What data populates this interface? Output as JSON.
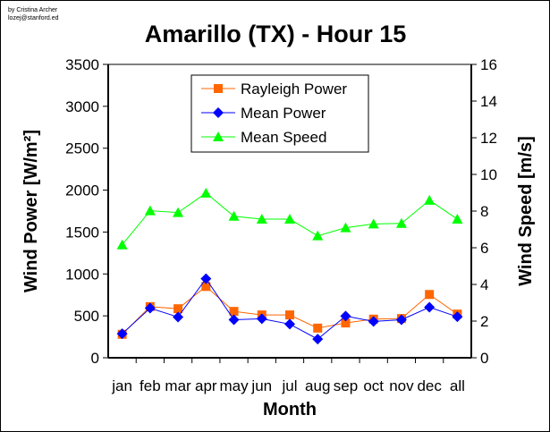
{
  "credit": {
    "line1": "by Cristina Archer",
    "line2": "lozej@stanford.ed"
  },
  "chart_data": {
    "type": "line",
    "title": "Amarillo (TX) - Hour 15",
    "xlabel": "Month",
    "ylabel": "Wind Power [W/m²]",
    "y2label": "Wind Speed [m/s]",
    "categories": [
      "jan",
      "feb",
      "mar",
      "apr",
      "may",
      "jun",
      "jul",
      "aug",
      "sep",
      "oct",
      "nov",
      "dec",
      "all"
    ],
    "ylim": [
      0,
      3500
    ],
    "yticks": [
      0,
      500,
      1000,
      1500,
      2000,
      2500,
      3000,
      3500
    ],
    "y2lim": [
      0,
      16
    ],
    "y2ticks": [
      0,
      2,
      4,
      6,
      8,
      10,
      12,
      14,
      16
    ],
    "legend_position": "top-center",
    "series": [
      {
        "name": "Rayleigh Power",
        "axis": "left",
        "color": "#ff6600",
        "marker": "square",
        "values": [
          280,
          610,
          585,
          851,
          553,
          511,
          511,
          354,
          415,
          461,
          468,
          755,
          521
        ]
      },
      {
        "name": "Mean Power",
        "axis": "left",
        "color": "#0000ff",
        "marker": "diamond",
        "values": [
          287,
          592,
          486,
          943,
          454,
          465,
          401,
          223,
          497,
          433,
          454,
          603,
          489
        ]
      },
      {
        "name": "Mean Speed",
        "axis": "right",
        "color": "#00ff00",
        "marker": "triangle",
        "values": [
          6.16,
          8.02,
          7.92,
          8.98,
          7.72,
          7.56,
          7.56,
          6.65,
          7.09,
          7.3,
          7.33,
          8.59,
          7.56
        ]
      }
    ]
  }
}
